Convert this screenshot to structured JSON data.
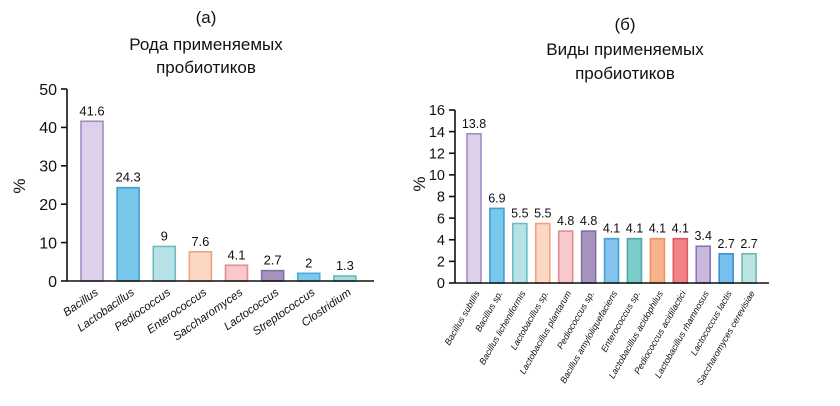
{
  "chart_data": [
    {
      "type": "bar",
      "panel_label": "(а)",
      "title": "Рода применяемых пробиотиков",
      "title_lines": [
        "Рода применяемых",
        "пробиотиков"
      ],
      "ylabel": "%",
      "xlabel": "",
      "ylim": [
        0,
        50
      ],
      "yticks": [
        0,
        10,
        20,
        30,
        40,
        50
      ],
      "categories": [
        "Bacillus",
        "Lactobacillus",
        "Pediococcus",
        "Enterococcus",
        "Saccharomyces",
        "Lactococcus",
        "Streptococcus",
        "Clostridium"
      ],
      "values": [
        41.6,
        24.3,
        9,
        7.6,
        4.1,
        2.7,
        2,
        1.3
      ],
      "value_labels": [
        "41.6",
        "24.3",
        "9",
        "7.6",
        "4.1",
        "2.7",
        "2",
        "1.3"
      ],
      "colors": [
        {
          "fill": "#dcd0ea",
          "stroke": "#a48ac6"
        },
        {
          "fill": "#78c8ec",
          "stroke": "#3f9fd0"
        },
        {
          "fill": "#b9e2e6",
          "stroke": "#6cbcc6"
        },
        {
          "fill": "#fcd7c4",
          "stroke": "#f1a27c"
        },
        {
          "fill": "#f8c8cc",
          "stroke": "#e28c96"
        },
        {
          "fill": "#a793be",
          "stroke": "#836ea0"
        },
        {
          "fill": "#7cc9ec",
          "stroke": "#4ca9d8"
        },
        {
          "fill": "#a6dcd9",
          "stroke": "#5fbcb6"
        }
      ],
      "grid": false
    },
    {
      "type": "bar",
      "panel_label": "(б)",
      "title": "Виды применяемых пробиотиков",
      "title_lines": [
        "Виды применяемых",
        "пробиотиков"
      ],
      "ylabel": "%",
      "xlabel": "",
      "ylim": [
        0,
        16
      ],
      "yticks": [
        0,
        2,
        4,
        6,
        8,
        10,
        12,
        14,
        16
      ],
      "categories": [
        "Bacillus subtilis",
        "Bacillus sp.",
        "Bacillus licheniformis",
        "Lactobacillus sp.",
        "Lactobacillus plantarum",
        "Pediococcus sp.",
        "Bacillus amyloliquefaciens",
        "Enterococcus sp.",
        "Lactobacillus acidophilus",
        "Pediococcus acidilactici",
        "Lactobacillus rhamnosus",
        "Lactococcus lactis",
        "Saccharomyces cerevisiae"
      ],
      "values": [
        13.8,
        6.9,
        5.5,
        5.5,
        4.8,
        4.8,
        4.1,
        4.1,
        4.1,
        4.1,
        3.4,
        2.7,
        2.7
      ],
      "value_labels": [
        "13.8",
        "6.9",
        "5.5",
        "5.5",
        "4.8",
        "4.8",
        "4.1",
        "4.1",
        "4.1",
        "4.1",
        "3.4",
        "2.7",
        "2.7"
      ],
      "colors": [
        {
          "fill": "#dcd0ea",
          "stroke": "#a48ac6"
        },
        {
          "fill": "#78c8ec",
          "stroke": "#3f9fd0"
        },
        {
          "fill": "#b9e2e6",
          "stroke": "#6cbcc6"
        },
        {
          "fill": "#fcd7c4",
          "stroke": "#f1a27c"
        },
        {
          "fill": "#f8c8cc",
          "stroke": "#e28c96"
        },
        {
          "fill": "#a793be",
          "stroke": "#836ea0"
        },
        {
          "fill": "#84c4ec",
          "stroke": "#4a9fd6"
        },
        {
          "fill": "#7ccccc",
          "stroke": "#4aa9a9"
        },
        {
          "fill": "#f8b38c",
          "stroke": "#ec9460"
        },
        {
          "fill": "#f08386",
          "stroke": "#dc5c62"
        },
        {
          "fill": "#c8b8de",
          "stroke": "#8e74b6"
        },
        {
          "fill": "#76c0ee",
          "stroke": "#3d8fd6"
        },
        {
          "fill": "#bde4e0",
          "stroke": "#6cbab4"
        }
      ],
      "grid": false
    }
  ]
}
